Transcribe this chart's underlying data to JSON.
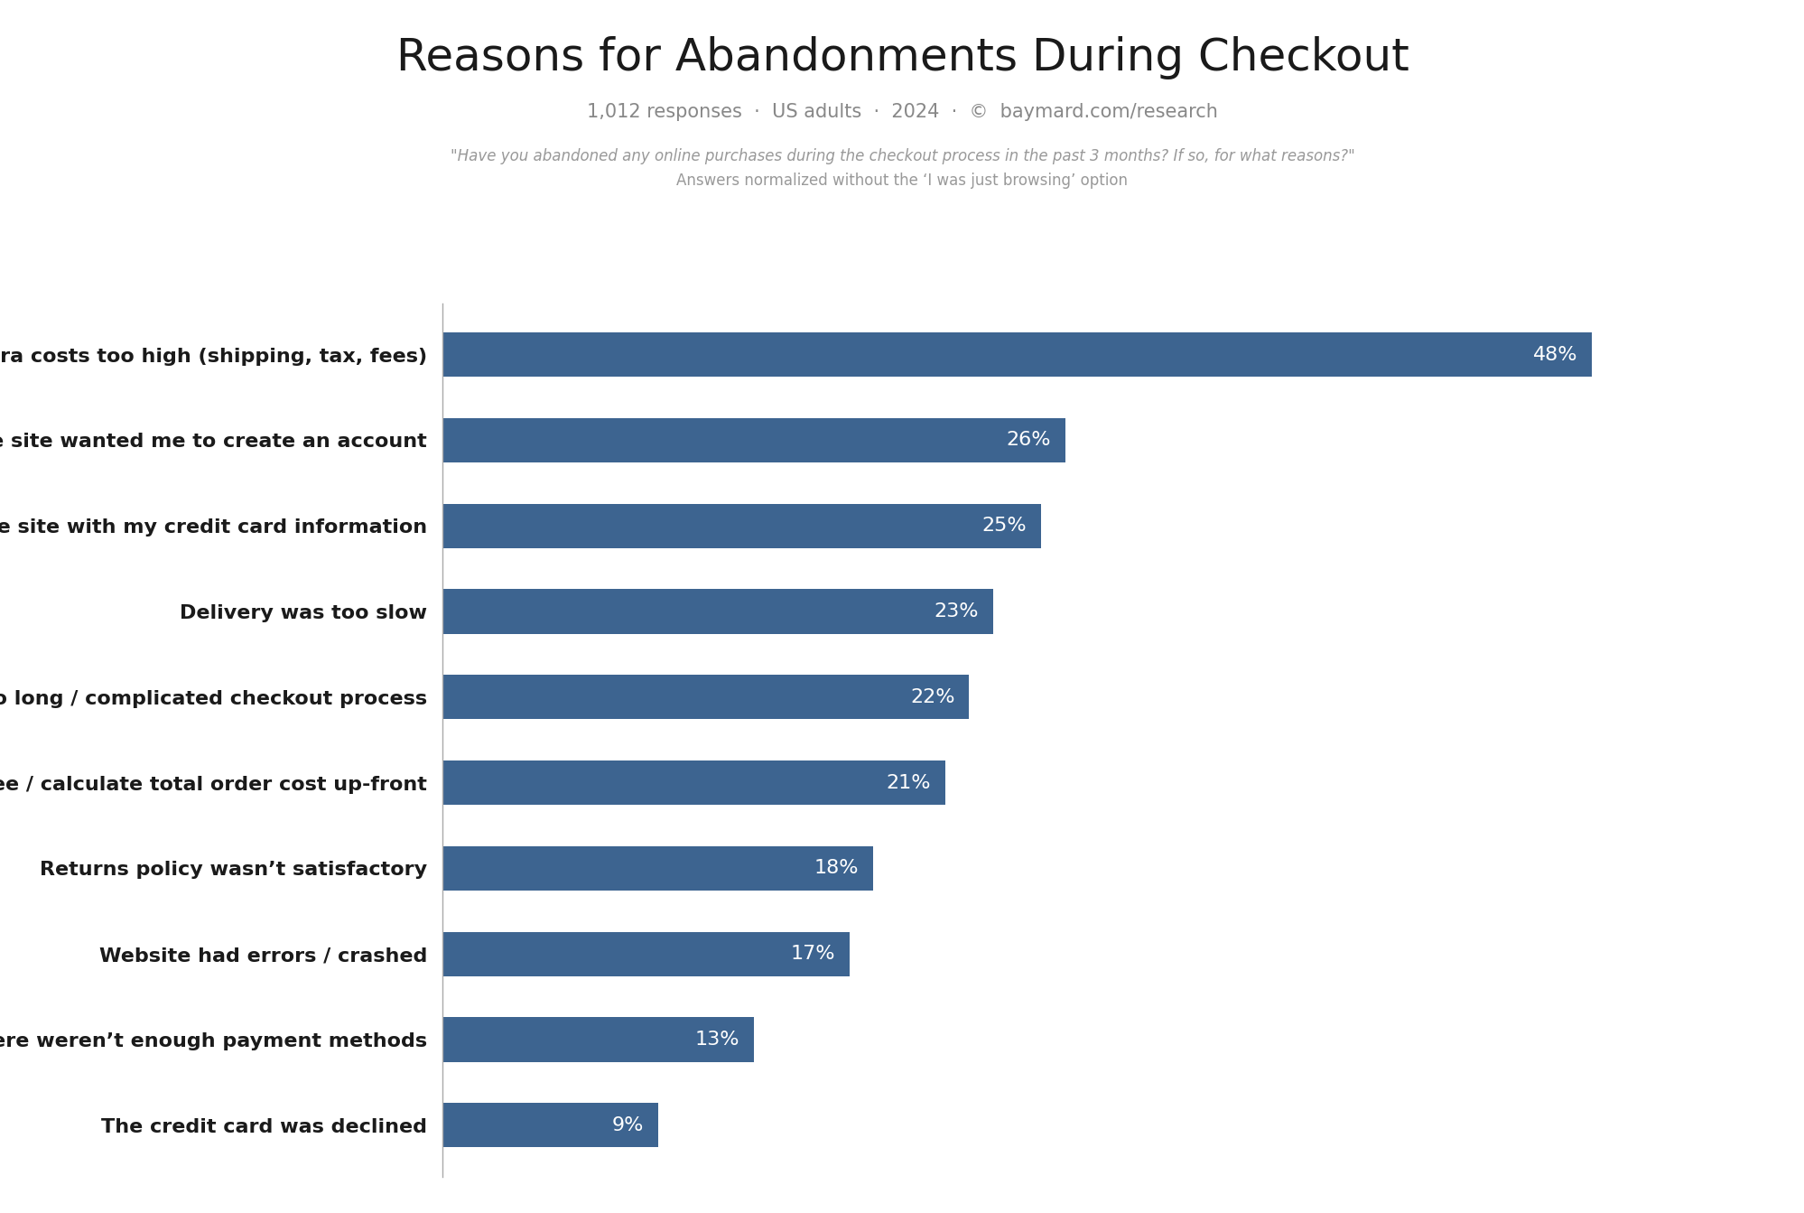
{
  "title": "Reasons for Abandonments During Checkout",
  "subtitle": "1,012 responses  ·  US adults  ·  2024  ·  ©  baymard.com/research",
  "footnote_line1": "\"Have you abandoned any online purchases during the checkout process in the past 3 months? If so, for what reasons?\"",
  "footnote_line2": "Answers normalized without the ‘I was just browsing’ option",
  "categories": [
    "Extra costs too high (shipping, tax, fees)",
    "The site wanted me to create an account",
    "I didn’t trust the site with my credit card information",
    "Delivery was too slow",
    "Too long / complicated checkout process",
    "I couldn’t see / calculate total order cost up-front",
    "Returns policy wasn’t satisfactory",
    "Website had errors / crashed",
    "There weren’t enough payment methods",
    "The credit card was declined"
  ],
  "values": [
    48,
    26,
    25,
    23,
    22,
    21,
    18,
    17,
    13,
    9
  ],
  "bar_color": "#3d6490",
  "label_color": "#ffffff",
  "title_color": "#1a1a1a",
  "subtitle_color": "#888888",
  "footnote_color": "#999999",
  "background_color": "#ffffff",
  "xlim": [
    0,
    55
  ],
  "bar_height": 0.52,
  "title_fontsize": 36,
  "subtitle_fontsize": 15,
  "footnote_fontsize": 12,
  "category_fontsize": 16,
  "value_fontsize": 16
}
